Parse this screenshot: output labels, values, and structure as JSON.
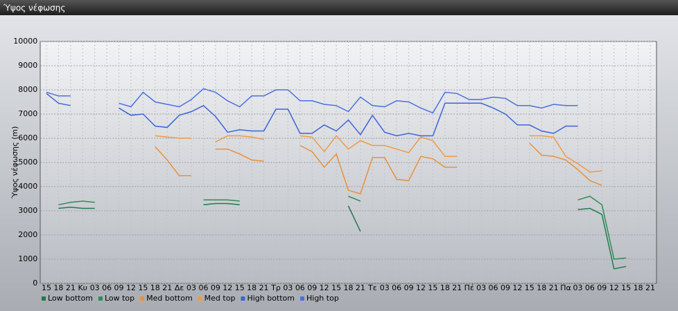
{
  "chart_data": {
    "type": "line",
    "title": "Ύψος νέφωσης",
    "y_label": "Ύψος νέφωσης (m)",
    "categories": [
      "15",
      "18",
      "21",
      "Κυ",
      "03",
      "06",
      "09",
      "12",
      "15",
      "18",
      "21",
      "Δε",
      "03",
      "06",
      "09",
      "12",
      "15",
      "18",
      "21",
      "Τρ",
      "03",
      "06",
      "09",
      "12",
      "15",
      "18",
      "21",
      "Τε",
      "03",
      "06",
      "09",
      "12",
      "15",
      "18",
      "21",
      "Πέ",
      "03",
      "06",
      "09",
      "12",
      "15",
      "18",
      "21",
      "Πα",
      "03",
      "06",
      "09",
      "12",
      "15",
      "18",
      "21"
    ],
    "series": [
      {
        "name": "Low bottom",
        "color": "#1e7b4a",
        "values": [
          null,
          3100,
          3150,
          3100,
          3100,
          null,
          null,
          null,
          null,
          null,
          null,
          null,
          null,
          3250,
          3300,
          3300,
          3250,
          null,
          null,
          null,
          null,
          null,
          null,
          null,
          null,
          3200,
          2150,
          null,
          null,
          null,
          null,
          null,
          null,
          null,
          null,
          null,
          null,
          null,
          null,
          null,
          null,
          null,
          null,
          null,
          3050,
          3100,
          2850,
          600,
          700,
          null,
          null
        ]
      },
      {
        "name": "Low top",
        "color": "#2e8b57",
        "values": [
          null,
          3250,
          3350,
          3400,
          3350,
          null,
          null,
          null,
          null,
          null,
          null,
          null,
          null,
          3450,
          3450,
          3450,
          3400,
          null,
          null,
          null,
          null,
          null,
          null,
          null,
          null,
          3600,
          3400,
          null,
          null,
          null,
          null,
          null,
          null,
          null,
          null,
          null,
          null,
          null,
          null,
          null,
          null,
          null,
          null,
          null,
          3450,
          3600,
          3250,
          1000,
          1050,
          null,
          null
        ]
      },
      {
        "name": "Med bottom",
        "color": "#e8913a",
        "values": [
          null,
          null,
          null,
          null,
          null,
          null,
          null,
          null,
          null,
          5650,
          5100,
          4450,
          4450,
          null,
          5550,
          5550,
          5350,
          5100,
          5050,
          null,
          null,
          5700,
          5450,
          4800,
          5350,
          3850,
          3700,
          5200,
          5200,
          4300,
          4250,
          5250,
          5150,
          4800,
          4800,
          null,
          null,
          null,
          null,
          null,
          5800,
          5300,
          5250,
          5100,
          4700,
          4250,
          4050,
          null,
          null,
          null,
          null
        ]
      },
      {
        "name": "Med top",
        "color": "#f09a45",
        "values": [
          null,
          null,
          null,
          null,
          null,
          null,
          null,
          null,
          null,
          6100,
          6050,
          6000,
          6000,
          null,
          5850,
          6100,
          6100,
          6050,
          5950,
          null,
          null,
          6100,
          6050,
          5450,
          6100,
          5550,
          5900,
          5700,
          5700,
          5550,
          5400,
          6050,
          5900,
          5250,
          5250,
          null,
          null,
          null,
          null,
          null,
          6100,
          6100,
          6050,
          5250,
          4950,
          4600,
          4650,
          null,
          null,
          null,
          null
        ]
      },
      {
        "name": "High bottom",
        "color": "#3d63d8",
        "values": [
          7850,
          7450,
          7350,
          null,
          null,
          null,
          7250,
          6950,
          7000,
          6500,
          6450,
          6950,
          7100,
          7350,
          6900,
          6250,
          6350,
          6300,
          6300,
          7200,
          7200,
          6200,
          6200,
          6550,
          6300,
          6750,
          6150,
          6950,
          6250,
          6100,
          6200,
          6100,
          6100,
          7450,
          7450,
          7450,
          7450,
          7250,
          7000,
          6550,
          6550,
          6300,
          6200,
          6500,
          6500,
          null,
          null,
          null,
          null,
          null,
          null
        ]
      },
      {
        "name": "High top",
        "color": "#4a6fe0",
        "values": [
          7900,
          7750,
          7750,
          null,
          null,
          null,
          7450,
          7300,
          7900,
          7500,
          7400,
          7300,
          7600,
          8050,
          7900,
          7550,
          7300,
          7750,
          7750,
          8000,
          8000,
          7550,
          7550,
          7400,
          7350,
          7100,
          7700,
          7350,
          7300,
          7550,
          7500,
          7250,
          7050,
          7900,
          7850,
          7600,
          7600,
          7700,
          7650,
          7350,
          7350,
          7250,
          7400,
          7350,
          7350,
          null,
          null,
          null,
          null,
          null,
          null
        ]
      }
    ],
    "ylim": [
      0,
      10000
    ],
    "yticks": [
      0,
      1000,
      2000,
      3000,
      4000,
      5000,
      6000,
      7000,
      8000,
      9000,
      10000
    ],
    "grid": true
  }
}
